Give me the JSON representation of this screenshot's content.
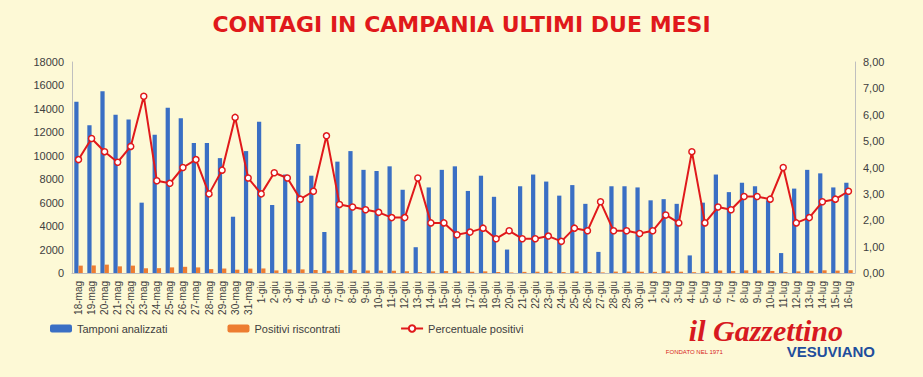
{
  "chart_data": {
    "type": "bar",
    "title": "CONTAGI IN CAMPANIA ULTIMI DUE MESI",
    "categories": [
      "18-mag",
      "19-mag",
      "20-mag",
      "21-mag",
      "22-mag",
      "23-mag",
      "24-mag",
      "25-mag",
      "26-mag",
      "27-mag",
      "28-mag",
      "29-mag",
      "30-mag",
      "31-mag",
      "1-giu",
      "2-giu",
      "3-giu",
      "4-giu",
      "5-giu",
      "6-giu",
      "7-giu",
      "8-giu",
      "9-giu",
      "10-giu",
      "11-giu",
      "12-giu",
      "13-giu",
      "14-giu",
      "15-giu",
      "16-giu",
      "17-giu",
      "18-giu",
      "19-giu",
      "20-giu",
      "21-giu",
      "22-giu",
      "23-giu",
      "24-giu",
      "25-giu",
      "26-giu",
      "27-giu",
      "28-giu",
      "29-giu",
      "30-giu",
      "1-lug",
      "2-lug",
      "3-lug",
      "4-lug",
      "5-lug",
      "6-lug",
      "7-lug",
      "8-lug",
      "9-lug",
      "10-lug",
      "11-lug",
      "12-lug",
      "13-lug",
      "14-lug",
      "15-lug",
      "16-lug"
    ],
    "series": [
      {
        "name": "Tamponi analizzati",
        "type": "bar",
        "color": "#3a6fc4",
        "values": [
          14600,
          12600,
          15500,
          13500,
          13100,
          6000,
          11800,
          14100,
          13200,
          11100,
          11100,
          9800,
          4800,
          10400,
          12900,
          5800,
          8400,
          11000,
          8300,
          3500,
          9500,
          10400,
          8800,
          8700,
          9100,
          7100,
          2200,
          7300,
          8800,
          9100,
          7000,
          8300,
          6500,
          2000,
          7400,
          8400,
          7800,
          6600,
          7500,
          5900,
          1800,
          7400,
          7400,
          7300,
          6200,
          6300,
          5900,
          1500,
          6000,
          8400,
          6900,
          7700,
          7400,
          6200,
          1700,
          7200,
          8800,
          8500,
          7300,
          7700
        ]
      },
      {
        "name": "Positivi riscontrati",
        "type": "bar",
        "color": "#ed7d31",
        "values": [
          628,
          643,
          713,
          567,
          629,
          402,
          413,
          479,
          528,
          477,
          333,
          382,
          283,
          374,
          387,
          220,
          302,
          308,
          257,
          182,
          247,
          260,
          211,
          200,
          191,
          149,
          79,
          139,
          167,
          132,
          109,
          141,
          85,
          32,
          96,
          109,
          109,
          79,
          128,
          94,
          49,
          118,
          118,
          110,
          99,
          139,
          112,
          69,
          114,
          210,
          166,
          223,
          215,
          174,
          68,
          137,
          185,
          230,
          204,
          239
        ]
      },
      {
        "name": "Percentuale positivi",
        "type": "line",
        "axis": "y2",
        "color": "#e0191b",
        "marker": "circle",
        "line_style": "solid",
        "values": [
          4.3,
          5.1,
          4.6,
          4.2,
          4.8,
          6.7,
          3.5,
          3.4,
          4.0,
          4.3,
          3.0,
          3.9,
          5.9,
          3.6,
          3.0,
          3.8,
          3.6,
          2.8,
          3.1,
          5.2,
          2.6,
          2.5,
          2.4,
          2.3,
          2.1,
          2.1,
          3.6,
          1.9,
          1.9,
          1.45,
          1.55,
          1.7,
          1.3,
          1.6,
          1.3,
          1.3,
          1.4,
          1.2,
          1.7,
          1.6,
          2.7,
          1.6,
          1.6,
          1.5,
          1.6,
          2.2,
          1.9,
          4.6,
          1.9,
          2.5,
          2.4,
          2.9,
          2.9,
          2.8,
          4.0,
          1.9,
          2.1,
          2.7,
          2.8,
          3.1
        ]
      }
    ],
    "ylim": [
      0,
      18000
    ],
    "yticks": [
      0,
      2000,
      4000,
      6000,
      8000,
      10000,
      12000,
      14000,
      16000,
      18000
    ],
    "y2lim": [
      0,
      8
    ],
    "y2ticks": [
      {
        "value": 0,
        "label": "0,00"
      },
      {
        "value": 1,
        "label": "1,00"
      },
      {
        "value": 2,
        "label": "2,00"
      },
      {
        "value": 3,
        "label": "3,00"
      },
      {
        "value": 4,
        "label": "4,00"
      },
      {
        "value": 5,
        "label": "5,00"
      },
      {
        "value": 6,
        "label": "6,00"
      },
      {
        "value": 7,
        "label": "7,00"
      },
      {
        "value": 8,
        "label": "8,00"
      }
    ],
    "grid": false,
    "legend": "bottom-left",
    "annotations": [
      "il Gazzettino",
      "VESUVIANO",
      "FONDATO NEL 1971"
    ]
  }
}
